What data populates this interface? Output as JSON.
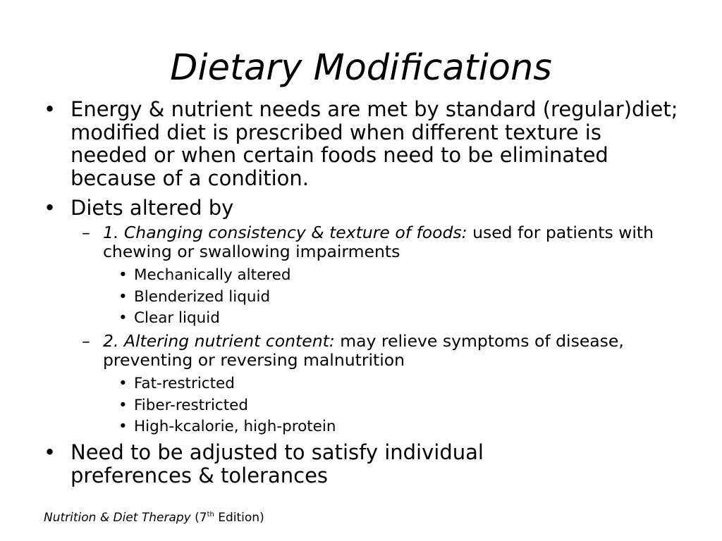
{
  "title": "Dietary Modifications",
  "bullets": [
    {
      "text": "Energy & nutrient needs are met by standard (regular)diet; modified diet is prescribed when different texture is needed or when certain foods need to be eliminated because of a condition."
    },
    {
      "text": "Diets altered by"
    },
    {
      "text": "Need to be adjusted to satisfy individual preferences & tolerances"
    }
  ],
  "subpoints": [
    {
      "italic": "1. Changing consistency & texture of foods:",
      "text": " used for patients with chewing or swallowing impairments",
      "items": [
        "Mechanically altered",
        "Blenderized liquid",
        "Clear liquid"
      ]
    },
    {
      "italic": "2. Altering nutrient content:",
      "text": " may relieve symptoms of disease, preventing or reversing malnutrition",
      "items": [
        "Fat-restricted",
        "Fiber-restricted",
        "High-kcalorie, high-protein"
      ]
    }
  ],
  "markers": {
    "level1": "•",
    "level2": "–",
    "level3": "•"
  },
  "footer": {
    "book_title": "Nutrition & Diet Therapy",
    "edition_open": " (7",
    "edition_sup": "th",
    "edition_close": " Edition)"
  }
}
